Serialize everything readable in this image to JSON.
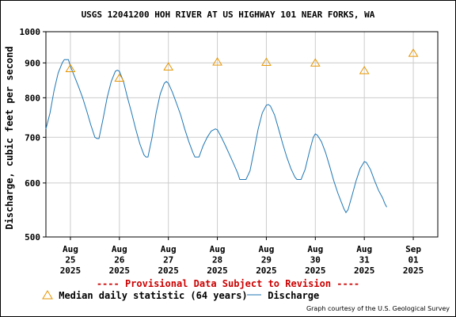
{
  "title": "USGS 12041200 HOH RIVER AT US HIGHWAY 101 NEAR FORKS, WA",
  "ylabel": "Discharge, cubic feet per second",
  "provisional": "---- Provisional Data Subject to Revision ----",
  "legend": {
    "median_label": "Median daily statistic (64 years)",
    "discharge_label": "Discharge"
  },
  "courtesy": "Graph courtesy of the U.S. Geological Survey",
  "colors": {
    "discharge": "#1f77b4",
    "median": "#e69500",
    "provisional": "#cc0000",
    "grid": "#cccccc"
  },
  "chart_data": {
    "type": "line",
    "title": "USGS 12041200 HOH RIVER AT US HIGHWAY 101 NEAR FORKS, WA",
    "ylabel": "Discharge, cubic feet per second",
    "yscale": "log",
    "ylim": [
      500,
      1000
    ],
    "yticks": [
      500,
      600,
      700,
      800,
      900,
      1000
    ],
    "xlim": [
      "2025-08-24 12:00",
      "2025-09-01 12:00"
    ],
    "xticks": [
      {
        "x": "2025-08-25",
        "label": [
          "Aug",
          "25",
          "2025"
        ]
      },
      {
        "x": "2025-08-26",
        "label": [
          "Aug",
          "26",
          "2025"
        ]
      },
      {
        "x": "2025-08-27",
        "label": [
          "Aug",
          "27",
          "2025"
        ]
      },
      {
        "x": "2025-08-28",
        "label": [
          "Aug",
          "28",
          "2025"
        ]
      },
      {
        "x": "2025-08-29",
        "label": [
          "Aug",
          "29",
          "2025"
        ]
      },
      {
        "x": "2025-08-30",
        "label": [
          "Aug",
          "30",
          "2025"
        ]
      },
      {
        "x": "2025-08-31",
        "label": [
          "Aug",
          "31",
          "2025"
        ]
      },
      {
        "x": "2025-09-01",
        "label": [
          "Sep",
          "01",
          "2025"
        ]
      }
    ],
    "grid": true,
    "legend_position": "bottom",
    "series": [
      {
        "name": "Discharge",
        "style": "line",
        "points": [
          [
            "2025-08-24 12:00",
            720
          ],
          [
            "2025-08-24 14:00",
            760
          ],
          [
            "2025-08-24 16:00",
            820
          ],
          [
            "2025-08-24 18:00",
            870
          ],
          [
            "2025-08-24 20:00",
            900
          ],
          [
            "2025-08-24 21:00",
            910
          ],
          [
            "2025-08-24 22:00",
            910
          ],
          [
            "2025-08-24 23:00",
            910
          ],
          [
            "2025-08-25 00:00",
            890
          ],
          [
            "2025-08-25 02:00",
            860
          ],
          [
            "2025-08-25 04:00",
            830
          ],
          [
            "2025-08-25 06:00",
            800
          ],
          [
            "2025-08-25 08:00",
            765
          ],
          [
            "2025-08-25 10:00",
            730
          ],
          [
            "2025-08-25 12:00",
            700
          ],
          [
            "2025-08-25 13:00",
            697
          ],
          [
            "2025-08-25 14:00",
            697
          ],
          [
            "2025-08-25 16:00",
            745
          ],
          [
            "2025-08-25 18:00",
            800
          ],
          [
            "2025-08-25 20:00",
            845
          ],
          [
            "2025-08-25 22:00",
            875
          ],
          [
            "2025-08-25 23:00",
            878
          ],
          [
            "2025-08-26 00:00",
            875
          ],
          [
            "2025-08-26 02:00",
            845
          ],
          [
            "2025-08-26 04:00",
            800
          ],
          [
            "2025-08-26 06:00",
            760
          ],
          [
            "2025-08-26 08:00",
            720
          ],
          [
            "2025-08-26 10:00",
            685
          ],
          [
            "2025-08-26 12:00",
            660
          ],
          [
            "2025-08-26 13:00",
            655
          ],
          [
            "2025-08-26 14:00",
            655
          ],
          [
            "2025-08-26 16:00",
            700
          ],
          [
            "2025-08-26 18:00",
            760
          ],
          [
            "2025-08-26 20:00",
            810
          ],
          [
            "2025-08-26 22:00",
            840
          ],
          [
            "2025-08-26 23:00",
            845
          ],
          [
            "2025-08-27 00:00",
            840
          ],
          [
            "2025-08-27 02:00",
            815
          ],
          [
            "2025-08-27 04:00",
            785
          ],
          [
            "2025-08-27 06:00",
            755
          ],
          [
            "2025-08-27 08:00",
            720
          ],
          [
            "2025-08-27 10:00",
            690
          ],
          [
            "2025-08-27 12:00",
            665
          ],
          [
            "2025-08-27 13:00",
            655
          ],
          [
            "2025-08-27 15:00",
            655
          ],
          [
            "2025-08-27 17:00",
            680
          ],
          [
            "2025-08-27 19:00",
            700
          ],
          [
            "2025-08-27 21:00",
            715
          ],
          [
            "2025-08-27 23:00",
            720
          ],
          [
            "2025-08-28 00:00",
            718
          ],
          [
            "2025-08-28 02:00",
            700
          ],
          [
            "2025-08-28 04:00",
            680
          ],
          [
            "2025-08-28 06:00",
            660
          ],
          [
            "2025-08-28 08:00",
            640
          ],
          [
            "2025-08-28 10:00",
            620
          ],
          [
            "2025-08-28 11:00",
            607
          ],
          [
            "2025-08-28 14:00",
            607
          ],
          [
            "2025-08-28 16:00",
            625
          ],
          [
            "2025-08-28 18:00",
            670
          ],
          [
            "2025-08-28 20:00",
            720
          ],
          [
            "2025-08-28 22:00",
            760
          ],
          [
            "2025-08-29 00:00",
            780
          ],
          [
            "2025-08-29 01:00",
            782
          ],
          [
            "2025-08-29 02:00",
            778
          ],
          [
            "2025-08-29 04:00",
            755
          ],
          [
            "2025-08-29 06:00",
            720
          ],
          [
            "2025-08-29 08:00",
            685
          ],
          [
            "2025-08-29 10:00",
            655
          ],
          [
            "2025-08-29 12:00",
            630
          ],
          [
            "2025-08-29 14:00",
            612
          ],
          [
            "2025-08-29 15:00",
            607
          ],
          [
            "2025-08-29 17:00",
            607
          ],
          [
            "2025-08-29 19:00",
            628
          ],
          [
            "2025-08-29 21:00",
            665
          ],
          [
            "2025-08-29 23:00",
            700
          ],
          [
            "2025-08-30 00:00",
            708
          ],
          [
            "2025-08-30 01:00",
            705
          ],
          [
            "2025-08-30 03:00",
            690
          ],
          [
            "2025-08-30 05:00",
            665
          ],
          [
            "2025-08-30 07:00",
            635
          ],
          [
            "2025-08-30 09:00",
            605
          ],
          [
            "2025-08-30 11:00",
            580
          ],
          [
            "2025-08-30 13:00",
            560
          ],
          [
            "2025-08-30 14:00",
            550
          ],
          [
            "2025-08-30 15:00",
            543
          ],
          [
            "2025-08-30 16:00",
            548
          ],
          [
            "2025-08-30 18:00",
            575
          ],
          [
            "2025-08-30 20:00",
            605
          ],
          [
            "2025-08-30 22:00",
            630
          ],
          [
            "2025-08-31 00:00",
            645
          ],
          [
            "2025-08-31 01:00",
            643
          ],
          [
            "2025-08-31 03:00",
            628
          ],
          [
            "2025-08-31 05:00",
            605
          ],
          [
            "2025-08-31 07:00",
            585
          ],
          [
            "2025-08-31 09:00",
            570
          ],
          [
            "2025-08-31 10:00",
            560
          ],
          [
            "2025-08-31 11:00",
            553
          ]
        ]
      },
      {
        "name": "Median daily statistic (64 years)",
        "style": "triangle-markers",
        "points": [
          [
            "2025-08-25",
            883
          ],
          [
            "2025-08-26",
            855
          ],
          [
            "2025-08-27",
            888
          ],
          [
            "2025-08-28",
            903
          ],
          [
            "2025-08-29",
            902
          ],
          [
            "2025-08-30",
            900
          ],
          [
            "2025-08-31",
            877
          ],
          [
            "2025-09-01",
            930
          ]
        ]
      }
    ]
  }
}
